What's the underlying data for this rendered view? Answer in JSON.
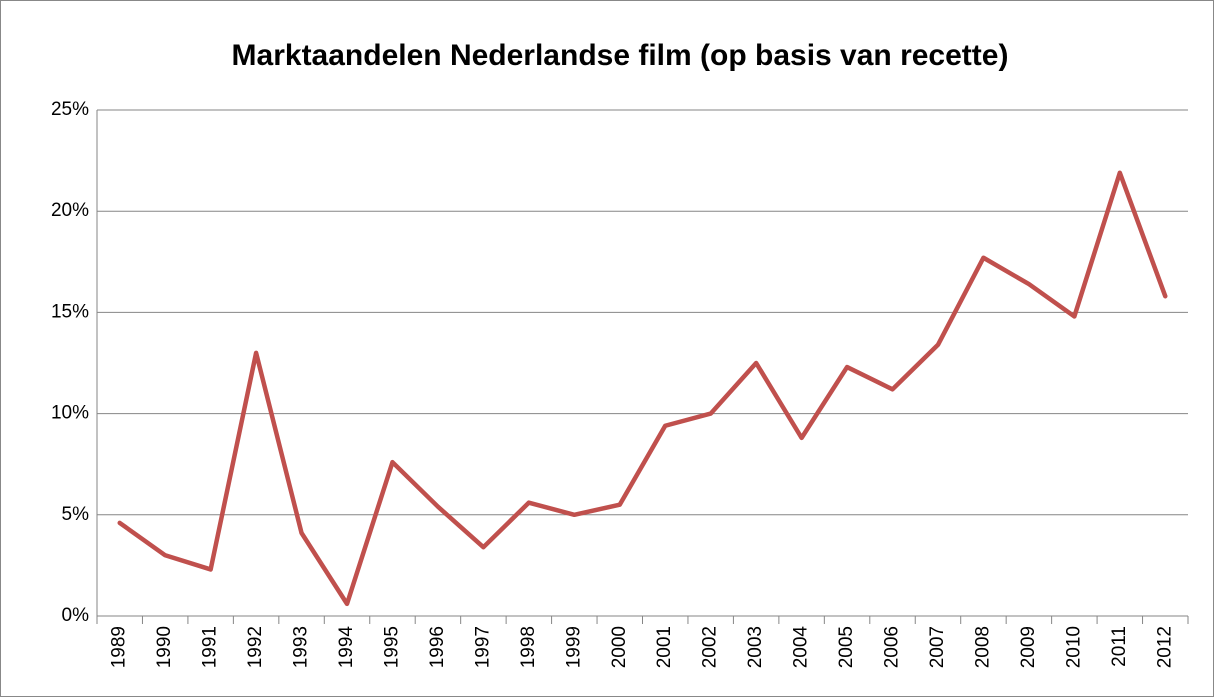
{
  "chart_data": {
    "type": "line",
    "title": "Marktaandelen Nederlandse film (op basis van recette)",
    "categories": [
      "1989",
      "1990",
      "1991",
      "1992",
      "1993",
      "1994",
      "1995",
      "1996",
      "1997",
      "1998",
      "1999",
      "2000",
      "2001",
      "2002",
      "2003",
      "2004",
      "2005",
      "2006",
      "2007",
      "2008",
      "2009",
      "2010",
      "2011",
      "2012"
    ],
    "series": [
      {
        "color": "#c0504d",
        "values": [
          4.6,
          3.0,
          2.3,
          13.0,
          4.1,
          0.6,
          7.6,
          5.4,
          3.4,
          5.6,
          5.0,
          5.5,
          9.4,
          10.0,
          12.5,
          8.8,
          12.3,
          11.2,
          13.4,
          17.7,
          16.4,
          14.8,
          21.9,
          15.8
        ]
      }
    ],
    "ylim": [
      0,
      25
    ],
    "yticks": [
      {
        "value": 0,
        "label": "0%"
      },
      {
        "value": 5,
        "label": "5%"
      },
      {
        "value": 10,
        "label": "10%"
      },
      {
        "value": 15,
        "label": "15%"
      },
      {
        "value": 20,
        "label": "20%"
      },
      {
        "value": 25,
        "label": "25%"
      }
    ],
    "grid": true
  }
}
